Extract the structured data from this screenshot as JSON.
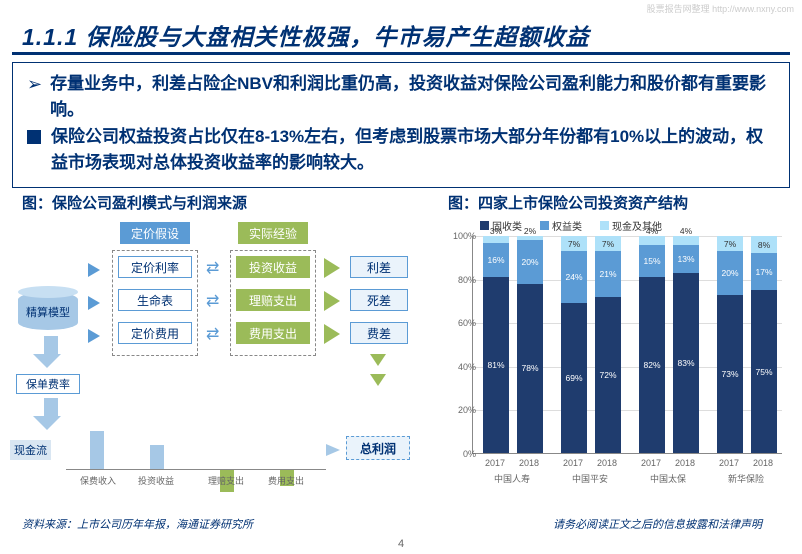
{
  "watermark": "股票报告网整理 http://www.nxny.com",
  "title": "1.1.1 保险股与大盘相关性极强，牛市易产生超额收益",
  "bullets": {
    "b1": "存量业务中，利差占险企NBV和利润比重仍高，投资收益对保险公司盈利能力和股价都有重要影响。",
    "b2": "保险公司权益投资占比仅在8-13%左右，但考虑到股票市场大部分年份都有10%以上的波动，权益市场表现对总体投资收益率的影响较大。"
  },
  "chart_title_left": "图：保险公司盈利模式与利润来源",
  "chart_title_right": "图：四家上市保险公司投资资产结构",
  "flow": {
    "pricing_assumption": "定价假设",
    "actual_experience": "实际经验",
    "actuarial_model": "精算模型",
    "pricing_rate": "定价利率",
    "life_table": "生命表",
    "pricing_expense": "定价费用",
    "investment_income": "投资收益",
    "claims": "理赔支出",
    "expenses": "费用支出",
    "spread": "利差",
    "mortality": "死差",
    "expense_margin": "费差",
    "policy_rate": "保单费率",
    "cash_flow": "现金流",
    "premium_income": "保费收入",
    "investment_income2": "投资收益",
    "claims2": "理赔支出",
    "expenses2": "费用支出",
    "total_profit": "总利润"
  },
  "bar_chart": {
    "type": "stacked-bar",
    "legend": [
      {
        "label": "固收类",
        "color": "#1f3c6e"
      },
      {
        "label": "权益类",
        "color": "#5b9bd5"
      },
      {
        "label": "现金及其他",
        "color": "#aee1f9"
      }
    ],
    "ylim": [
      0,
      100
    ],
    "ytick_step": 20,
    "ylabels": [
      "0%",
      "20%",
      "40%",
      "60%",
      "80%",
      "100%"
    ],
    "grid_color": "#dddddd",
    "companies": [
      "中国人寿",
      "中国平安",
      "中国太保",
      "新华保险"
    ],
    "years": [
      "2017",
      "2018"
    ],
    "data": [
      {
        "company": "中国人寿",
        "year": "2017",
        "fixed": 81,
        "equity": 16,
        "cash": 3
      },
      {
        "company": "中国人寿",
        "year": "2018",
        "fixed": 78,
        "equity": 20,
        "cash": 2
      },
      {
        "company": "中国平安",
        "year": "2017",
        "fixed": 69,
        "equity": 24,
        "cash": 7
      },
      {
        "company": "中国平安",
        "year": "2018",
        "fixed": 72,
        "equity": 21,
        "cash": 7
      },
      {
        "company": "中国太保",
        "year": "2017",
        "fixed": 82,
        "equity": 15,
        "cash": 4
      },
      {
        "company": "中国太保",
        "year": "2018",
        "fixed": 83,
        "equity": 13,
        "cash": 4
      },
      {
        "company": "新华保险",
        "year": "2017",
        "fixed": 73,
        "equity": 20,
        "cash": 7
      },
      {
        "company": "新华保险",
        "year": "2018",
        "fixed": 75,
        "equity": 17,
        "cash": 8
      }
    ]
  },
  "footer": {
    "source": "资料来源：上市公司历年年报，海通证券研究所",
    "disclaimer": "请务必阅读正文之后的信息披露和法律声明",
    "page": "4"
  },
  "colors": {
    "brand": "#003173",
    "blue_fill": "#5b9bd5",
    "green_fill": "#9bbb59",
    "cyl": "#a6c8e6",
    "seg_fixed": "#1f3c6e",
    "seg_equity": "#5b9bd5",
    "seg_cash": "#aee1f9"
  }
}
